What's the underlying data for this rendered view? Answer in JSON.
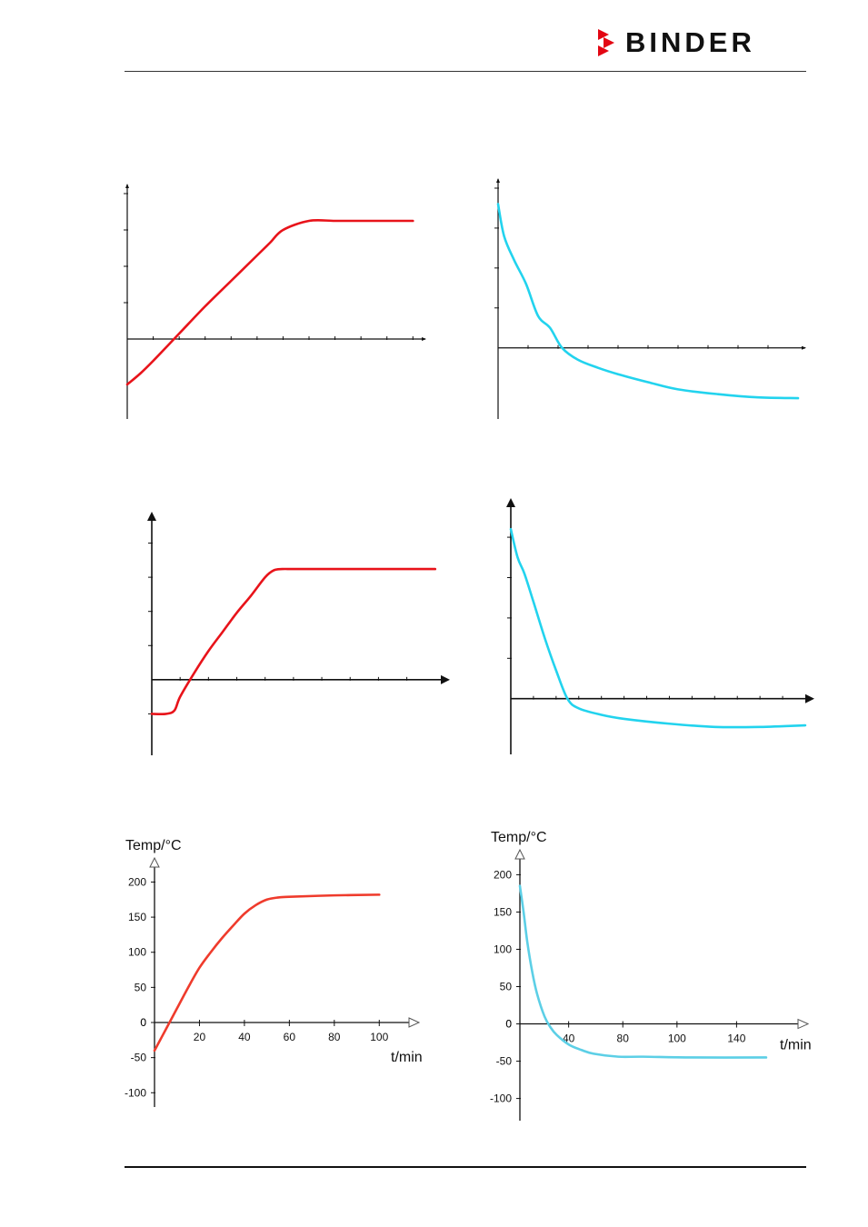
{
  "header": {
    "brand": "BINDER",
    "brand_color": "#e30613"
  },
  "colors": {
    "heat": "#e8131a",
    "cool": "#22d3ee",
    "heat_light": "#ef3b2c",
    "cool_light": "#5ccfe6"
  },
  "chart_data": [
    {
      "id": "sketch-heat-1",
      "type": "line",
      "series": [
        {
          "color": "#e8131a",
          "x": [
            0,
            5,
            10,
            20,
            30,
            40,
            50,
            55,
            60,
            70,
            80,
            90,
            100,
            110
          ],
          "y": [
            -25,
            -19,
            -12,
            3,
            18,
            32,
            46,
            53,
            60,
            65,
            65,
            65,
            65,
            65
          ]
        }
      ],
      "xlim": [
        0,
        112
      ],
      "ylim": [
        -40,
        80
      ],
      "xticks": [
        10,
        20,
        30,
        40,
        50,
        60,
        70,
        80,
        90,
        100,
        110
      ],
      "yticks": [
        20,
        40,
        60,
        80
      ]
    },
    {
      "id": "sketch-cool-1",
      "type": "line",
      "series": [
        {
          "color": "#22d3ee",
          "x": [
            0,
            3,
            8,
            14,
            20,
            26,
            32,
            40,
            50,
            60,
            75,
            90,
            110,
            130,
            150
          ],
          "y": [
            180,
            140,
            110,
            80,
            40,
            25,
            0,
            -15,
            -25,
            -33,
            -43,
            -52,
            -58,
            -62,
            -63
          ]
        }
      ],
      "xlim": [
        0,
        150
      ],
      "ylim": [
        -80,
        200
      ],
      "xticks": [
        15,
        30,
        45,
        60,
        75,
        90,
        105,
        120,
        135
      ],
      "yticks": [
        50,
        100,
        150,
        200
      ]
    },
    {
      "id": "sketch-heat-2",
      "type": "line",
      "series": [
        {
          "color": "#e8131a",
          "x": [
            0,
            5,
            8,
            10,
            15,
            20,
            25,
            30,
            35,
            40,
            43,
            46,
            50,
            60,
            80,
            100
          ],
          "y": [
            -50,
            -50,
            -45,
            -25,
            10,
            42,
            70,
            98,
            123,
            150,
            160,
            162,
            162,
            162,
            162,
            162
          ]
        }
      ],
      "xlim": [
        0,
        102
      ],
      "ylim": [
        -100,
        230
      ],
      "xticks": [
        10,
        20,
        30,
        40,
        50,
        60,
        70,
        80,
        90
      ],
      "yticks": [
        -50,
        50,
        100,
        150,
        200
      ]
    },
    {
      "id": "sketch-cool-2",
      "type": "line",
      "series": [
        {
          "color": "#22d3ee",
          "x": [
            0,
            3,
            6,
            10,
            15,
            20,
            25,
            30,
            40,
            50,
            70,
            90,
            110,
            130
          ],
          "y": [
            210,
            175,
            155,
            120,
            75,
            35,
            0,
            -12,
            -20,
            -25,
            -31,
            -35,
            -35,
            -33
          ]
        }
      ],
      "xlim": [
        0,
        130
      ],
      "ylim": [
        -60,
        235
      ],
      "xticks": [
        10,
        20,
        30,
        40,
        50,
        60,
        70,
        80,
        90,
        100,
        110,
        120
      ],
      "yticks": [
        50,
        100,
        150,
        200
      ]
    },
    {
      "id": "heat-curve",
      "type": "line",
      "ylabel": "Temp/°C",
      "xlabel": "t/min",
      "series": [
        {
          "color": "#ef3b2c",
          "x": [
            0,
            5,
            10,
            15,
            20,
            25,
            30,
            35,
            40,
            45,
            50,
            55,
            60,
            80,
            100
          ],
          "y": [
            -40,
            -10,
            20,
            50,
            78,
            100,
            120,
            138,
            155,
            167,
            175,
            178,
            179,
            181,
            182
          ]
        }
      ],
      "xlim": [
        0,
        110
      ],
      "ylim": [
        -110,
        220
      ],
      "xticks": [
        20,
        40,
        60,
        80,
        100
      ],
      "yticks": [
        -100,
        -50,
        0,
        50,
        100,
        150,
        200
      ]
    },
    {
      "id": "cool-curve",
      "type": "line",
      "ylabel": "Temp/°C",
      "xlabel": "t/min",
      "series": [
        {
          "color": "#5ccfe6",
          "x": [
            0,
            3,
            6,
            10,
            14,
            20,
            25,
            30,
            40,
            50,
            60,
            80,
            100,
            140,
            200
          ],
          "y": [
            185,
            150,
            110,
            70,
            40,
            10,
            -5,
            -15,
            -28,
            -35,
            -40,
            -44,
            -44,
            -45,
            -45
          ]
        }
      ],
      "xlim": [
        0,
        220
      ],
      "ylim": [
        -120,
        220
      ],
      "xticks": [
        40,
        80,
        100,
        140
      ],
      "xtick_positions": [
        0.18,
        0.38,
        0.58,
        0.8
      ],
      "yticks": [
        -100,
        -50,
        0,
        50,
        100,
        150,
        200
      ]
    }
  ]
}
